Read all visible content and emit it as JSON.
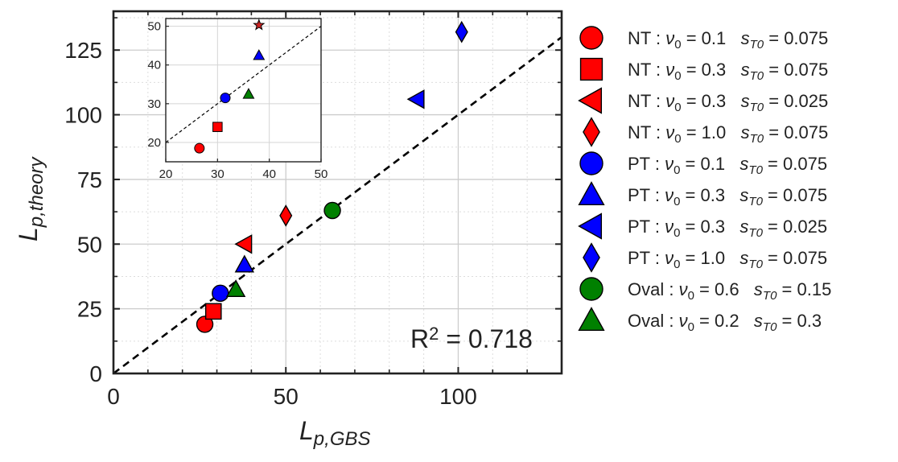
{
  "chart_data": {
    "type": "scatter",
    "main": {
      "xlabel": "L_{p,GBS}",
      "ylabel": "L_{p,theory}",
      "xlim": [
        0,
        130
      ],
      "ylim": [
        0,
        140
      ],
      "xticks": [
        0,
        50,
        100
      ],
      "yticks": [
        0,
        25,
        50,
        75,
        100,
        125
      ],
      "grid": true,
      "reference_line": {
        "type": "y=x",
        "style": "dashed",
        "color": "#000000"
      },
      "annotation": "R^2 = 0.718"
    },
    "inset": {
      "xlim": [
        20,
        50
      ],
      "ylim": [
        15,
        52
      ],
      "xticks": [
        20,
        30,
        40,
        50
      ],
      "yticks": [
        20,
        30,
        40,
        50
      ],
      "grid": true,
      "reference_line": {
        "type": "y=x",
        "style": "dashed",
        "color": "#000000"
      }
    },
    "series": [
      {
        "name": "NT : ν0 = 0.1   sT0 = 0.075",
        "group": "NT",
        "nu0": "0.1",
        "sT0": "0.075",
        "marker": "circle",
        "color": "#ff0000",
        "x": 26.5,
        "y": 19
      },
      {
        "name": "NT : ν0 = 0.3   sT0 = 0.075",
        "group": "NT",
        "nu0": "0.3",
        "sT0": "0.075",
        "marker": "square",
        "color": "#ff0000",
        "x": 29,
        "y": 24
      },
      {
        "name": "NT : ν0 = 0.3   sT0 = 0.025",
        "group": "NT",
        "nu0": "0.3",
        "sT0": "0.025",
        "marker": "triangle-left",
        "color": "#ff0000",
        "x": 38,
        "y": 50
      },
      {
        "name": "NT : ν0 = 1.0   sT0 = 0.075",
        "group": "NT",
        "nu0": "1.0",
        "sT0": "0.075",
        "marker": "diamond",
        "color": "#ff0000",
        "x": 50,
        "y": 61
      },
      {
        "name": "PT : ν0 = 0.1   sT0 = 0.075",
        "group": "PT",
        "nu0": "0.1",
        "sT0": "0.075",
        "marker": "circle",
        "color": "#0000ff",
        "x": 31,
        "y": 31
      },
      {
        "name": "PT : ν0 = 0.3   sT0 = 0.075",
        "group": "PT",
        "nu0": "0.3",
        "sT0": "0.075",
        "marker": "triangle-up",
        "color": "#0000ff",
        "x": 38,
        "y": 42
      },
      {
        "name": "PT : ν0 = 0.3   sT0 = 0.025",
        "group": "PT",
        "nu0": "0.3",
        "sT0": "0.025",
        "marker": "triangle-left",
        "color": "#0000ff",
        "x": 88,
        "y": 106
      },
      {
        "name": "PT : ν0 = 1.0   sT0 = 0.075",
        "group": "PT",
        "nu0": "1.0",
        "sT0": "0.075",
        "marker": "diamond",
        "color": "#0000ff",
        "x": 101,
        "y": 132
      },
      {
        "name": "Oval : ν0 = 0.6   sT0 = 0.15",
        "group": "Oval",
        "nu0": "0.6",
        "sT0": "0.15",
        "marker": "circle",
        "color": "#008000",
        "x": 63.5,
        "y": 63
      },
      {
        "name": "Oval : ν0 = 0.2   sT0 = 0.3",
        "group": "Oval",
        "nu0": "0.2",
        "sT0": "0.3",
        "marker": "triangle-up",
        "color": "#008000",
        "x": 35.5,
        "y": 32.5
      }
    ],
    "inset_points": [
      {
        "marker": "circle",
        "color": "#ff0000",
        "x": 26.5,
        "y": 18.5
      },
      {
        "marker": "square",
        "color": "#ff0000",
        "x": 30,
        "y": 24
      },
      {
        "marker": "circle",
        "color": "#0000ff",
        "x": 31.5,
        "y": 31.5
      },
      {
        "marker": "triangle-up",
        "color": "#008000",
        "x": 36,
        "y": 32.5
      },
      {
        "marker": "triangle-up",
        "color": "#0000ff",
        "x": 38,
        "y": 42.5
      },
      {
        "marker": "star",
        "color": "#cc2222",
        "x": 38,
        "y": 50.3
      }
    ]
  }
}
